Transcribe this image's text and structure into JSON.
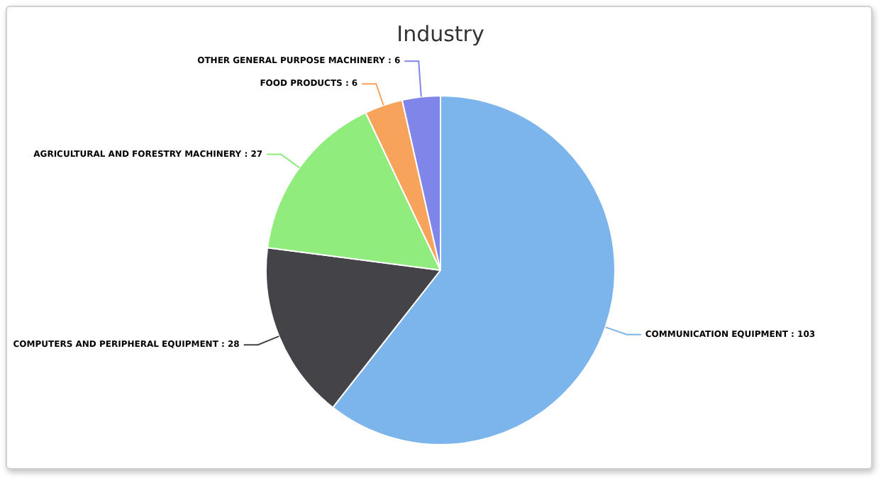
{
  "chart_data": {
    "type": "pie",
    "title": "Industry",
    "categories": [
      "COMMUNICATION EQUIPMENT",
      "COMPUTERS AND PERIPHERAL EQUIPMENT",
      "AGRICULTURAL AND FORESTRY MACHINERY",
      "FOOD PRODUCTS",
      "OTHER GENERAL PURPOSE MACHINERY"
    ],
    "values": [
      103,
      28,
      27,
      6,
      6
    ],
    "colors": [
      "#7cb5ec",
      "#434348",
      "#90ed7d",
      "#f7a35c",
      "#8085e9"
    ],
    "value_labels": [
      ": 103",
      ": 28",
      ": 27",
      ": 6",
      ": 6"
    ],
    "legend": false
  }
}
